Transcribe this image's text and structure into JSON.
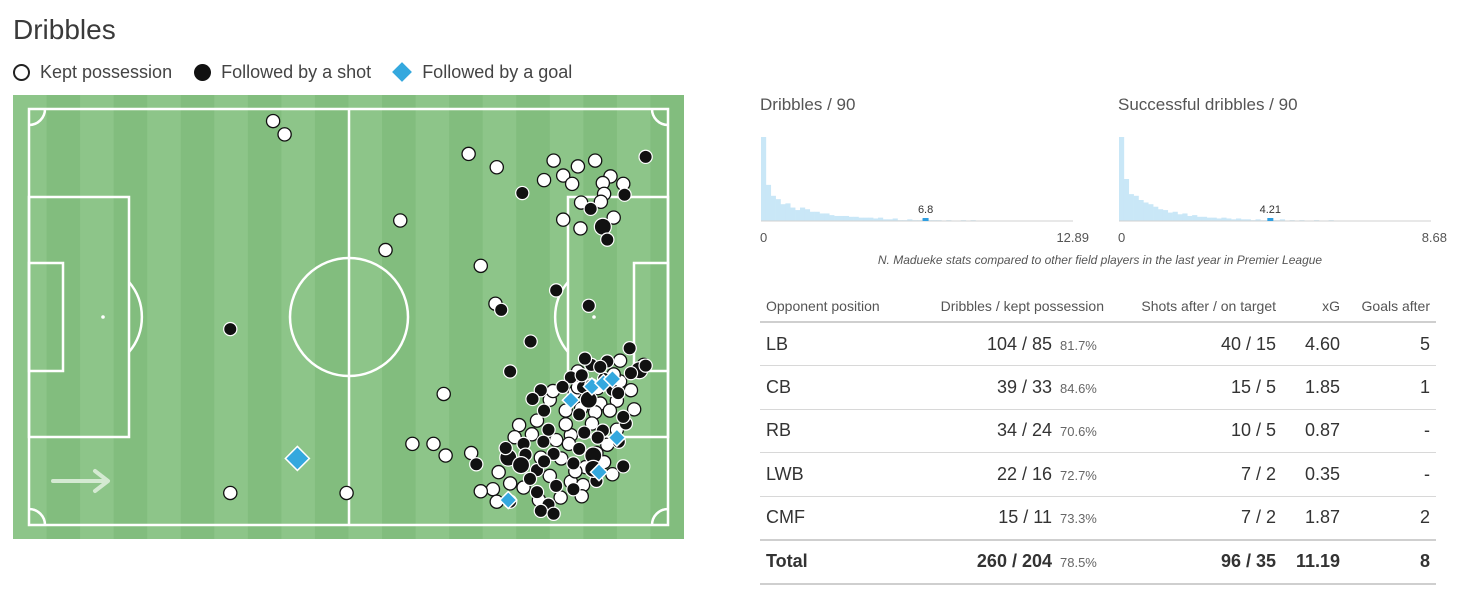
{
  "header": {
    "title": "Dribbles"
  },
  "legend": [
    {
      "label": "Kept possession",
      "marker": "open-circle"
    },
    {
      "label": "Followed by a shot",
      "marker": "filled-circle"
    },
    {
      "label": "Followed by a goal",
      "marker": "blue-diamond"
    }
  ],
  "colors": {
    "pitch_light": "#8dc589",
    "pitch_dark": "#82bd7e",
    "goal_marker": "#34a8de",
    "hist_bar": "#c9e7f7",
    "hist_highlight": "#2f9ee0"
  },
  "histograms": [
    {
      "title": "Dribbles / 90",
      "x_min_label": "0",
      "x_max_label": "12.89",
      "highlight_label": "6.8",
      "highlight_value": 6.8,
      "max_value": 12.89,
      "bar_heights": [
        1.0,
        0.43,
        0.3,
        0.26,
        0.2,
        0.21,
        0.16,
        0.13,
        0.16,
        0.14,
        0.11,
        0.11,
        0.09,
        0.09,
        0.07,
        0.06,
        0.06,
        0.06,
        0.05,
        0.05,
        0.04,
        0.04,
        0.04,
        0.03,
        0.04,
        0.02,
        0.02,
        0.03,
        0.01,
        0.01,
        0.02,
        0.01,
        0.01,
        0.02,
        0.01,
        0.01,
        0.01,
        0.0,
        0.01,
        0.0,
        0.0,
        0.01,
        0.0,
        0.01,
        0.0,
        0.0,
        0.0,
        0.0,
        0.0,
        0.0,
        0.0,
        0.0,
        0.0,
        0.0,
        0.0,
        0.0,
        0.0,
        0.0,
        0.0,
        0.0,
        0.0,
        0.0,
        0.0,
        0.0
      ]
    },
    {
      "title": "Successful dribbles / 90",
      "x_min_label": "0",
      "x_max_label": "8.68",
      "highlight_label": "4.21",
      "highlight_value": 4.21,
      "max_value": 8.68,
      "bar_heights": [
        1.0,
        0.5,
        0.32,
        0.3,
        0.25,
        0.22,
        0.2,
        0.17,
        0.14,
        0.13,
        0.1,
        0.11,
        0.08,
        0.09,
        0.06,
        0.07,
        0.05,
        0.05,
        0.04,
        0.04,
        0.03,
        0.04,
        0.03,
        0.02,
        0.03,
        0.02,
        0.02,
        0.01,
        0.02,
        0.01,
        0.01,
        0.01,
        0.01,
        0.02,
        0.0,
        0.01,
        0.0,
        0.01,
        0.0,
        0.0,
        0.01,
        0.0,
        0.0,
        0.01,
        0.0,
        0.0,
        0.0,
        0.0,
        0.0,
        0.0,
        0.0,
        0.0,
        0.0,
        0.0,
        0.0,
        0.0,
        0.0,
        0.0,
        0.0,
        0.0,
        0.0,
        0.0,
        0.0,
        0.0
      ]
    }
  ],
  "note": "N. Madueke stats compared to other field players in the last year in Premier League",
  "table": {
    "headers": [
      "Opponent position",
      "Dribbles / kept possession",
      "Shots after / on target",
      "xG",
      "Goals after"
    ],
    "rows": [
      {
        "pos": "LB",
        "dribbles": "104 / 85",
        "pct": "81.7%",
        "shots": "40 / 15",
        "xg": "4.60",
        "goals": "5"
      },
      {
        "pos": "CB",
        "dribbles": "39 / 33",
        "pct": "84.6%",
        "shots": "15 / 5",
        "xg": "1.85",
        "goals": "1"
      },
      {
        "pos": "RB",
        "dribbles": "34 / 24",
        "pct": "70.6%",
        "shots": "10 / 5",
        "xg": "0.87",
        "goals": "-"
      },
      {
        "pos": "LWB",
        "dribbles": "22 / 16",
        "pct": "72.7%",
        "shots": "7 / 2",
        "xg": "0.35",
        "goals": "-"
      },
      {
        "pos": "CMF",
        "dribbles": "15 / 11",
        "pct": "73.3%",
        "shots": "7 / 2",
        "xg": "1.87",
        "goals": "2"
      }
    ],
    "total": {
      "pos": "Total",
      "dribbles": "260 / 204",
      "pct": "78.5%",
      "shots": "96 / 35",
      "xg": "11.19",
      "goals": "8"
    }
  },
  "chart_data": {
    "type": "scatter",
    "x_range": [
      0,
      100
    ],
    "y_range": [
      0,
      100
    ],
    "attack_direction": "left-to-right",
    "points": [
      [
        38.2,
        2.9,
        "k"
      ],
      [
        68.8,
        10.8,
        "k"
      ],
      [
        73.2,
        14.0,
        "k"
      ],
      [
        82.1,
        12.4,
        "k"
      ],
      [
        85.9,
        13.8,
        "k"
      ],
      [
        88.6,
        12.4,
        "k"
      ],
      [
        83.6,
        16.0,
        "k"
      ],
      [
        91.0,
        16.2,
        "k"
      ],
      [
        89.8,
        17.8,
        "k"
      ],
      [
        93.0,
        18.0,
        "k"
      ],
      [
        80.6,
        17.1,
        "k"
      ],
      [
        77.2,
        20.2,
        "s"
      ],
      [
        85.0,
        18.0,
        "k"
      ],
      [
        90.0,
        20.4,
        "k"
      ],
      [
        93.2,
        20.6,
        "s"
      ],
      [
        89.5,
        22.3,
        "k"
      ],
      [
        86.4,
        22.5,
        "k"
      ],
      [
        87.9,
        24.0,
        "s"
      ],
      [
        91.5,
        26.1,
        "k"
      ],
      [
        83.6,
        26.6,
        "k"
      ],
      [
        86.3,
        28.7,
        "k"
      ],
      [
        89.8,
        28.3,
        "s"
      ],
      [
        58.1,
        26.8,
        "k"
      ],
      [
        90.5,
        31.4,
        "s"
      ],
      [
        55.8,
        33.9,
        "k"
      ],
      [
        70.7,
        37.7,
        "k"
      ],
      [
        73.0,
        46.8,
        "k"
      ],
      [
        82.5,
        43.6,
        "s"
      ],
      [
        73.9,
        48.3,
        "s"
      ],
      [
        87.6,
        47.3,
        "s"
      ],
      [
        96.5,
        11.5,
        "s"
      ],
      [
        31.5,
        52.9,
        "s"
      ],
      [
        78.5,
        55.9,
        "s"
      ],
      [
        75.3,
        63.1,
        "s"
      ],
      [
        96.2,
        61.5,
        "k"
      ],
      [
        95.5,
        62.8,
        "s"
      ],
      [
        96.5,
        61.7,
        "s"
      ],
      [
        94.0,
        57.5,
        "s"
      ],
      [
        92.5,
        60.5,
        "k"
      ],
      [
        90.5,
        60.7,
        "s"
      ],
      [
        90.0,
        64.9,
        "s"
      ],
      [
        88.0,
        61.5,
        "s"
      ],
      [
        87.0,
        60.0,
        "s"
      ],
      [
        85.9,
        63.1,
        "k"
      ],
      [
        84.8,
        64.5,
        "s"
      ],
      [
        86.7,
        66.9,
        "s"
      ],
      [
        85.4,
        68.1,
        "k"
      ],
      [
        87.6,
        69.9,
        "s"
      ],
      [
        89.0,
        67.1,
        "k"
      ],
      [
        91.3,
        67.5,
        "s"
      ],
      [
        92.5,
        65.5,
        "k"
      ],
      [
        89.4,
        70.8,
        "k"
      ],
      [
        92.0,
        70.1,
        "k"
      ],
      [
        90.9,
        72.5,
        "k"
      ],
      [
        88.6,
        72.9,
        "k"
      ],
      [
        86.1,
        73.4,
        "s"
      ],
      [
        84.0,
        72.5,
        "k"
      ],
      [
        81.5,
        69.9,
        "k"
      ],
      [
        80.1,
        67.6,
        "s"
      ],
      [
        80.6,
        72.5,
        "s"
      ],
      [
        79.5,
        74.9,
        "k"
      ],
      [
        76.7,
        76.0,
        "k"
      ],
      [
        78.7,
        78.2,
        "k"
      ],
      [
        81.3,
        77.1,
        "s"
      ],
      [
        82.5,
        79.6,
        "k"
      ],
      [
        84.8,
        78.4,
        "k"
      ],
      [
        88.1,
        75.6,
        "k"
      ],
      [
        89.8,
        77.3,
        "s"
      ],
      [
        92.0,
        77.1,
        "k"
      ],
      [
        93.4,
        75.6,
        "s"
      ],
      [
        86.1,
        81.7,
        "s"
      ],
      [
        88.3,
        83.3,
        "s"
      ],
      [
        85.2,
        85.2,
        "s"
      ],
      [
        84.5,
        80.5,
        "k"
      ],
      [
        87.1,
        86.1,
        "k"
      ],
      [
        88.8,
        82.7,
        "k"
      ],
      [
        82.1,
        82.9,
        "s"
      ],
      [
        80.1,
        83.8,
        "k"
      ],
      [
        79.5,
        86.8,
        "s"
      ],
      [
        81.5,
        88.2,
        "k"
      ],
      [
        82.5,
        90.6,
        "s"
      ],
      [
        84.8,
        89.6,
        "k"
      ],
      [
        86.7,
        90.4,
        "k"
      ],
      [
        88.8,
        89.4,
        "s"
      ],
      [
        91.3,
        87.8,
        "k"
      ],
      [
        93.0,
        85.9,
        "s"
      ],
      [
        77.4,
        80.5,
        "s"
      ],
      [
        77.7,
        83.1,
        "s"
      ],
      [
        75.0,
        83.8,
        "s"
      ],
      [
        73.5,
        87.3,
        "k"
      ],
      [
        75.3,
        90.0,
        "k"
      ],
      [
        72.6,
        91.4,
        "k"
      ],
      [
        70.7,
        91.9,
        "k"
      ],
      [
        73.2,
        94.4,
        "k"
      ],
      [
        79.8,
        94.0,
        "k"
      ],
      [
        81.3,
        95.1,
        "s"
      ],
      [
        83.2,
        93.4,
        "k"
      ],
      [
        85.2,
        91.4,
        "s"
      ],
      [
        79.5,
        92.1,
        "s"
      ],
      [
        77.4,
        91.0,
        "k"
      ],
      [
        75.3,
        94.4,
        "s"
      ],
      [
        80.1,
        96.6,
        "s"
      ],
      [
        82.1,
        97.3,
        "s"
      ],
      [
        60.0,
        80.5,
        "k"
      ],
      [
        63.3,
        80.5,
        "k"
      ],
      [
        65.2,
        83.3,
        "k"
      ],
      [
        69.2,
        82.7,
        "k"
      ],
      [
        70.0,
        85.4,
        "s"
      ],
      [
        40.0,
        6.1,
        "k"
      ],
      [
        49.7,
        92.3,
        "k"
      ],
      [
        31.5,
        92.3,
        "k"
      ],
      [
        64.9,
        68.5,
        "k"
      ],
      [
        80.6,
        84.7,
        "s"
      ],
      [
        77.0,
        85.6,
        "s"
      ],
      [
        76.0,
        78.9,
        "k"
      ],
      [
        74.6,
        81.5,
        "s"
      ],
      [
        86.4,
        72.0,
        "k"
      ],
      [
        85.9,
        66.9,
        "k"
      ],
      [
        88.0,
        66.4,
        "s"
      ],
      [
        91.5,
        63.8,
        "k"
      ],
      [
        89.4,
        62.0,
        "s"
      ],
      [
        92.2,
        68.3,
        "s"
      ],
      [
        94.2,
        67.6,
        "k"
      ],
      [
        94.7,
        72.2,
        "k"
      ],
      [
        94.2,
        63.5,
        "s"
      ],
      [
        93.0,
        74.0,
        "s"
      ],
      [
        84.0,
        75.8,
        "k"
      ],
      [
        86.9,
        77.8,
        "s"
      ],
      [
        90.5,
        80.7,
        "k"
      ],
      [
        92.3,
        80.0,
        "s"
      ],
      [
        85.5,
        87.1,
        "k"
      ],
      [
        83.3,
        84.0,
        "k"
      ],
      [
        88.3,
        86.5,
        "s"
      ],
      [
        90.0,
        84.9,
        "k"
      ],
      [
        86.5,
        93.1,
        "k"
      ],
      [
        78.4,
        88.9,
        "s"
      ],
      [
        89.0,
        79.0,
        "s"
      ],
      [
        86.5,
        64.0,
        "s"
      ],
      [
        83.5,
        66.8,
        "s"
      ],
      [
        82.0,
        67.8,
        "k"
      ],
      [
        78.8,
        69.7,
        "s"
      ],
      [
        80.5,
        80.0,
        "s"
      ],
      [
        88.1,
        66.7,
        "g"
      ],
      [
        89.9,
        65.9,
        "g"
      ],
      [
        91.3,
        64.9,
        "g"
      ],
      [
        84.8,
        70.0,
        "g"
      ],
      [
        92.0,
        79.0,
        "g"
      ],
      [
        89.2,
        87.3,
        "g"
      ],
      [
        42.0,
        84.0,
        "g"
      ],
      [
        75.0,
        94.0,
        "g"
      ]
    ]
  }
}
